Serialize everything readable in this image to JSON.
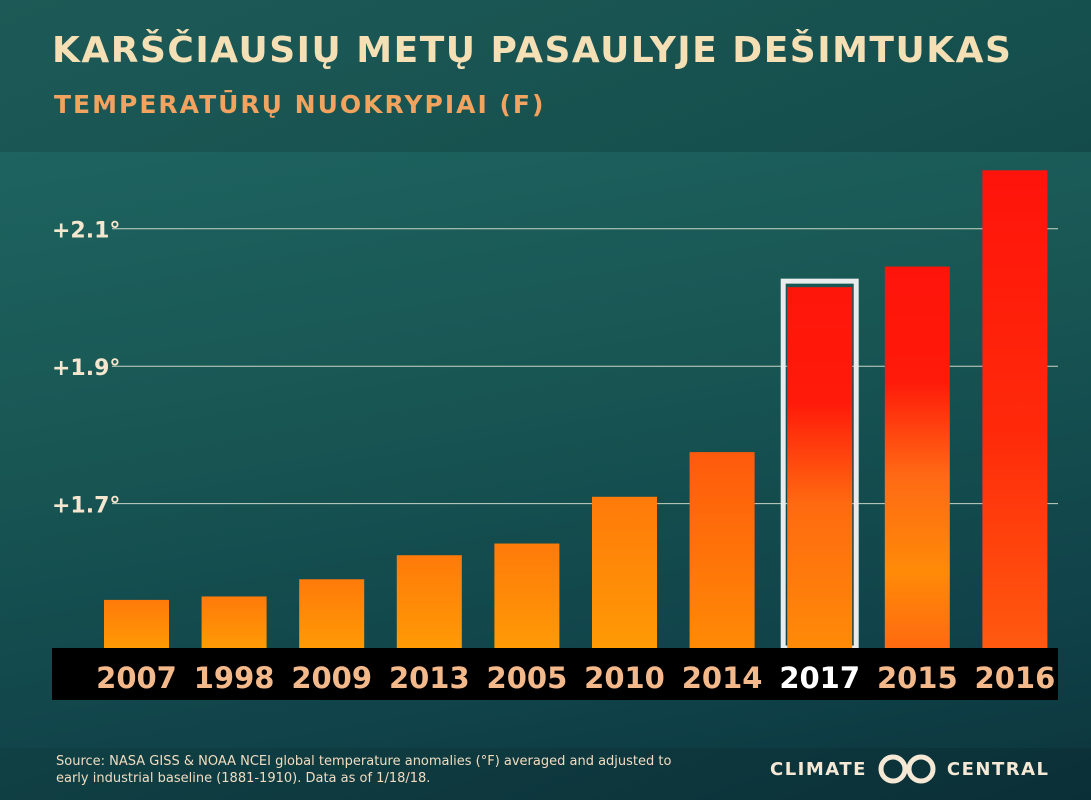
{
  "title": "KARŠČIAUSIŲ METŲ PASAULYJE DEŠIMTUKAS",
  "subtitle": "TEMPERATŪRŲ NUOKRYPIAI (F)",
  "source": "Source: NASA GISS & NOAA NCEI global temperature anomalies (°F) averaged and adjusted to early industrial baseline (1881-1910). Data as of 1/18/18.",
  "logo": {
    "left": "CLIMATE",
    "right": "CENTRAL",
    "icon": "infinity-loop-icon"
  },
  "colors": {
    "text_light": "#f5dfb5",
    "subtitle": "#f2a35f",
    "bar_orange": "#ff8a00",
    "bar_red": "#ff1a0a",
    "highlight_outline": "#e8ecec",
    "year_label": "#f4b98a",
    "year_label_highlight": "#ffffff",
    "axis_band": "#000000"
  },
  "chart_data": {
    "type": "bar",
    "title": "KARŠČIAUSIŲ METŲ PASAULYJE DEŠIMTUKAS",
    "subtitle": "TEMPERATŪRŲ NUOKRYPIAI (F)",
    "categories": [
      "2007",
      "1998",
      "2009",
      "2013",
      "2005",
      "2010",
      "2014",
      "2017",
      "2015",
      "2016"
    ],
    "values": [
      1.56,
      1.565,
      1.59,
      1.625,
      1.642,
      1.71,
      1.775,
      2.015,
      2.045,
      2.185
    ],
    "highlight": "2017",
    "yticks": [
      1.7,
      1.9,
      2.1
    ],
    "ytick_labels": [
      "+1.7°",
      "+1.9°",
      "+2.1°"
    ],
    "ylim": [
      1.49,
      2.2
    ],
    "grid": true,
    "xlabel": "",
    "ylabel": ""
  }
}
